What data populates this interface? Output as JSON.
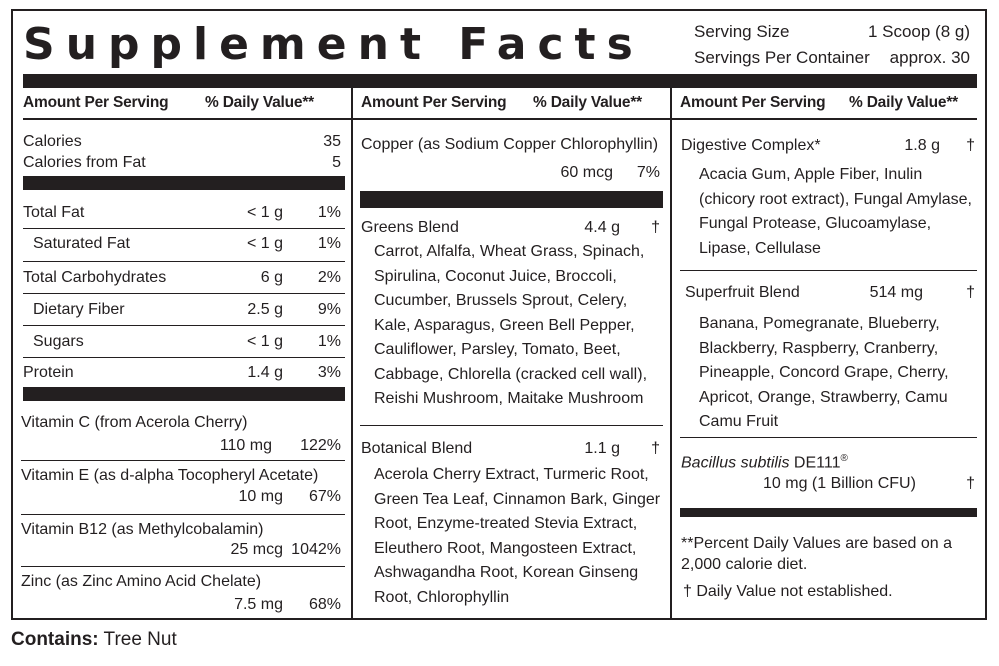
{
  "title": "Supplement Facts",
  "serving": {
    "size_label": "Serving Size",
    "size_value": "1 Scoop (8 g)",
    "per_container_label": "Servings Per Container",
    "per_container_value": "approx. 30"
  },
  "headers": {
    "amount": "Amount Per Serving",
    "dv": "% Daily Value**"
  },
  "col1": {
    "calories": {
      "label": "Calories",
      "value": "35"
    },
    "calories_fat": {
      "label": "Calories from Fat",
      "value": "5"
    },
    "rows": [
      {
        "name": "Total Fat",
        "amount": "< 1 g",
        "dv": "1%"
      },
      {
        "name": "Saturated Fat",
        "amount": "< 1 g",
        "dv": "1%"
      },
      {
        "name": "Total Carbohydrates",
        "amount": "6 g",
        "dv": "2%"
      },
      {
        "name": "Dietary Fiber",
        "amount": "2.5 g",
        "dv": "9%"
      },
      {
        "name": "Sugars",
        "amount": "< 1 g",
        "dv": "1%"
      },
      {
        "name": "Protein",
        "amount": "1.4 g",
        "dv": "3%"
      }
    ],
    "vitamins": [
      {
        "name": "Vitamin C (from Acerola Cherry)",
        "amount": "110 mg",
        "dv": "122%"
      },
      {
        "name": "Vitamin E (as d-alpha Tocopheryl Acetate)",
        "amount": "10 mg",
        "dv": "67%"
      },
      {
        "name": "Vitamin B12 (as Methylcobalamin)",
        "amount": "25 mcg",
        "dv": "1042%"
      },
      {
        "name": "Zinc (as Zinc Amino Acid Chelate)",
        "amount": "7.5 mg",
        "dv": "68%"
      }
    ]
  },
  "col2": {
    "copper": {
      "name": "Copper (as Sodium Copper Chlorophyllin)",
      "amount": "60 mcg",
      "dv": "7%"
    },
    "greens": {
      "name": "Greens Blend",
      "amount": "4.4 g",
      "dv": "†",
      "ingredients": "Carrot, Alfalfa, Wheat Grass, Spinach, Spirulina, Coconut Juice, Broccoli, Cucumber, Brussels Sprout, Celery, Kale, Asparagus, Green Bell Pepper, Cauliflower, Parsley, Tomato, Beet, Cabbage, Chlorella (cracked cell wall), Reishi Mushroom, Maitake Mushroom"
    },
    "botanical": {
      "name": "Botanical Blend",
      "amount": "1.1 g",
      "dv": "†",
      "ingredients": "Acerola Cherry Extract, Turmeric Root, Green Tea Leaf, Cinnamon Bark, Ginger Root, Enzyme-treated Stevia Extract, Eleuthero Root, Mangosteen Extract, Ashwagandha Root, Korean Ginseng Root, Chlorophyllin"
    }
  },
  "col3": {
    "digestive": {
      "name": "Digestive Complex*",
      "amount": "1.8 g",
      "dv": "†",
      "ingredients": "Acacia Gum, Apple Fiber, Inulin (chicory root extract), Fungal Amylase, Fungal Protease, Glucoamylase, Lipase, Cellulase"
    },
    "superfruit": {
      "name": "Superfruit Blend",
      "amount": "514 mg",
      "dv": "†",
      "ingredients": "Banana, Pomegranate, Blueberry, Blackberry, Raspberry, Cranberry, Pineapple, Concord Grape, Cherry, Apricot, Orange, Strawberry, Camu Camu Fruit"
    },
    "bacillus": {
      "name_italic": "Bacillus subtilis",
      "name_rest": " DE111",
      "reg": "®",
      "amount": "10 mg (1 Billion CFU)",
      "dv": "†"
    },
    "footnote_dv": "**Percent Daily Values are based on a 2,000 calorie diet.",
    "footnote_dagger": "† Daily Value not established."
  },
  "contains": {
    "label": "Contains:",
    "value": " Tree Nut"
  }
}
